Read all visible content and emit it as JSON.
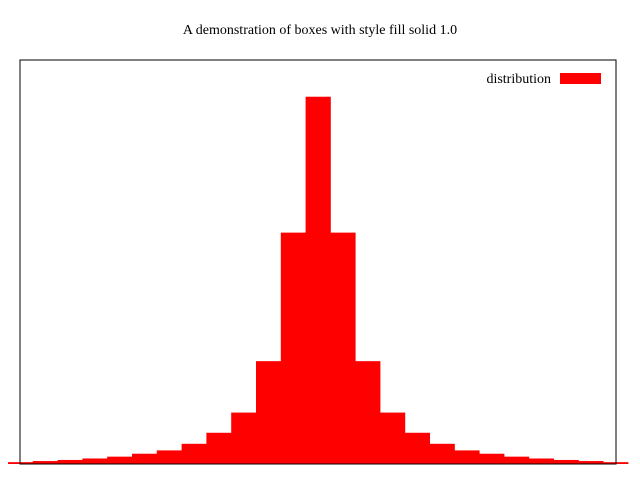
{
  "chart_data": {
    "type": "bar",
    "title": "A demonstration of boxes with style fill solid 1.0",
    "xlabel": "",
    "ylabel": "",
    "grid": false,
    "legend_position": "top-right",
    "ylim": [
      0,
      1.1
    ],
    "series": [
      {
        "name": "distribution",
        "color": "#ff0000",
        "values": [
          0.005,
          0.008,
          0.011,
          0.015,
          0.02,
          0.028,
          0.037,
          0.055,
          0.085,
          0.14,
          0.28,
          0.63,
          1.0,
          0.63,
          0.28,
          0.14,
          0.085,
          0.055,
          0.037,
          0.028,
          0.02,
          0.015,
          0.011,
          0.008,
          0.005
        ]
      }
    ]
  }
}
